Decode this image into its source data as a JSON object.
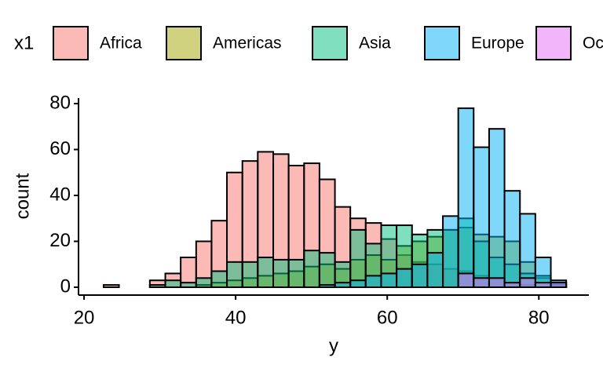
{
  "chart_data": {
    "type": "histogram",
    "x_label": "y",
    "y_label": "count",
    "legend_title": "x1",
    "legend_position": "top",
    "bins": [
      22.58,
      24.61,
      26.65,
      28.68,
      30.72,
      32.75,
      34.79,
      36.82,
      38.85,
      40.89,
      42.92,
      44.96,
      46.99,
      49.03,
      51.06,
      53.1,
      55.13,
      57.16,
      59.2,
      61.23,
      63.27,
      65.3,
      67.34,
      69.37,
      71.4,
      73.44,
      75.47,
      77.51,
      79.54,
      81.58,
      83.61
    ],
    "series": [
      {
        "name": "Africa",
        "color": "#F8766D",
        "values": [
          1,
          0,
          0,
          3,
          6,
          13,
          20,
          29,
          50,
          55,
          59,
          58,
          53,
          54,
          47,
          35,
          30,
          28,
          21,
          14,
          11,
          10,
          8,
          7,
          5,
          4,
          2,
          1,
          0,
          0
        ]
      },
      {
        "name": "Americas",
        "color": "#A3A500",
        "values": [
          0,
          0,
          0,
          0,
          0,
          0,
          1,
          2,
          3,
          4,
          5,
          6,
          7,
          9,
          10,
          8,
          12,
          14,
          12,
          18,
          20,
          22,
          25,
          26,
          23,
          22,
          20,
          11,
          4,
          1
        ]
      },
      {
        "name": "Asia",
        "color": "#00BF7D",
        "values": [
          0,
          0,
          0,
          1,
          3,
          2,
          4,
          7,
          11,
          11,
          13,
          12,
          12,
          16,
          15,
          11,
          25,
          19,
          27,
          27,
          23,
          25,
          25,
          30,
          20,
          13,
          10,
          6,
          5,
          2
        ]
      },
      {
        "name": "Europe",
        "color": "#00B0F6",
        "values": [
          0,
          0,
          0,
          0,
          0,
          0,
          0,
          0,
          0,
          0,
          0,
          0,
          0,
          0,
          1,
          2,
          3,
          5,
          6,
          8,
          10,
          15,
          31,
          78,
          61,
          69,
          42,
          32,
          13,
          3
        ]
      },
      {
        "name": "Oceania",
        "color": "#E76BF3",
        "values": [
          0,
          0,
          0,
          0,
          0,
          0,
          0,
          0,
          0,
          0,
          0,
          0,
          0,
          0,
          0,
          0,
          0,
          0,
          0,
          0,
          0,
          0,
          0,
          6,
          4,
          4,
          2,
          4,
          2,
          2
        ]
      }
    ],
    "opacity": 0.5,
    "xlim": [
      19.27,
      86.6
    ],
    "xticks": [
      20,
      40,
      60,
      80
    ],
    "ylim": [
      -3.42,
      82.4
    ],
    "yticks": [
      0,
      20,
      40,
      60,
      80
    ]
  }
}
